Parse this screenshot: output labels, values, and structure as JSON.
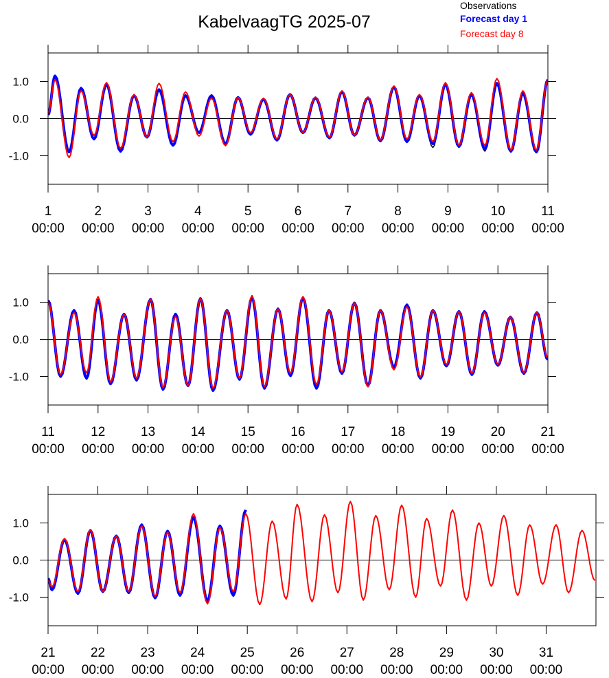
{
  "title": "KabelvaagTG 2025-07",
  "chart_data": [
    {
      "type": "line",
      "xlim": [
        1,
        11
      ],
      "ylim": [
        -1.77,
        1.77
      ],
      "xticks": [
        {
          "value": 1,
          "label": "1\n00:00"
        },
        {
          "value": 2,
          "label": "2\n00:00"
        },
        {
          "value": 3,
          "label": "3\n00:00"
        },
        {
          "value": 4,
          "label": "4\n00:00"
        },
        {
          "value": 5,
          "label": "5\n00:00"
        },
        {
          "value": 6,
          "label": "6\n00:00"
        },
        {
          "value": 7,
          "label": "7\n00:00"
        },
        {
          "value": 8,
          "label": "8\n00:00"
        },
        {
          "value": 9,
          "label": "9\n00:00"
        },
        {
          "value": 10,
          "label": "10\n00:00"
        },
        {
          "value": 11,
          "label": "11\n00:00"
        }
      ],
      "yticks": [
        {
          "value": -1,
          "label": "-1.0"
        },
        {
          "value": 0,
          "label": "0.0"
        },
        {
          "value": 1,
          "label": "1.0"
        }
      ],
      "zero_line": true,
      "x": [
        1.0,
        1.14,
        1.42,
        1.66,
        1.92,
        2.17,
        2.45,
        2.72,
        2.98,
        3.22,
        3.5,
        3.75,
        4.02,
        4.27,
        4.55,
        4.8,
        5.05,
        5.31,
        5.58,
        5.84,
        6.1,
        6.35,
        6.63,
        6.88,
        7.13,
        7.4,
        7.65,
        7.92,
        8.18,
        8.43,
        8.7,
        8.95,
        9.22,
        9.47,
        9.74,
        9.98,
        10.26,
        10.5,
        10.77,
        11.0
      ],
      "series": [
        {
          "name": "Observations",
          "color": "#000000",
          "values": [
            0.1,
            1.12,
            -0.9,
            0.8,
            -0.57,
            0.9,
            -0.9,
            0.6,
            -0.5,
            0.76,
            -0.72,
            0.6,
            -0.4,
            0.6,
            -0.68,
            0.55,
            -0.45,
            0.5,
            -0.58,
            0.63,
            -0.4,
            0.55,
            -0.52,
            0.7,
            -0.47,
            0.55,
            -0.62,
            0.83,
            -0.65,
            0.6,
            -0.78,
            0.9,
            -0.78,
            0.63,
            -0.88,
            0.93,
            -0.9,
            0.66,
            -0.92,
            1.03
          ]
        },
        {
          "name": "Forecast day 1",
          "color": "#0000ff",
          "values": [
            0.1,
            1.15,
            -0.9,
            0.82,
            -0.55,
            0.92,
            -0.88,
            0.62,
            -0.5,
            0.78,
            -0.72,
            0.62,
            -0.38,
            0.62,
            -0.68,
            0.57,
            -0.42,
            0.52,
            -0.58,
            0.65,
            -0.38,
            0.56,
            -0.52,
            0.72,
            -0.45,
            0.56,
            -0.6,
            0.85,
            -0.62,
            0.62,
            -0.68,
            0.92,
            -0.75,
            0.65,
            -0.82,
            0.95,
            -0.88,
            0.68,
            -0.9,
            1.05
          ]
        },
        {
          "name": "Forecast day 8",
          "color": "#ff0000",
          "values": [
            0.15,
            1.05,
            -1.05,
            0.75,
            -0.45,
            0.97,
            -0.8,
            0.65,
            -0.5,
            0.95,
            -0.62,
            0.72,
            -0.47,
            0.55,
            -0.73,
            0.57,
            -0.38,
            0.55,
            -0.55,
            0.65,
            -0.38,
            0.58,
            -0.5,
            0.75,
            -0.45,
            0.58,
            -0.58,
            0.88,
            -0.55,
            0.65,
            -0.62,
            0.97,
            -0.72,
            0.7,
            -0.72,
            1.08,
            -0.85,
            0.75,
            -0.85,
            1.05
          ]
        }
      ]
    },
    {
      "type": "line",
      "xlim": [
        11,
        21
      ],
      "ylim": [
        -1.77,
        1.77
      ],
      "xticks": [
        {
          "value": 11,
          "label": "11\n00:00"
        },
        {
          "value": 12,
          "label": "12\n00:00"
        },
        {
          "value": 13,
          "label": "13\n00:00"
        },
        {
          "value": 14,
          "label": "14\n00:00"
        },
        {
          "value": 15,
          "label": "15\n00:00"
        },
        {
          "value": 16,
          "label": "16\n00:00"
        },
        {
          "value": 17,
          "label": "17\n00:00"
        },
        {
          "value": 18,
          "label": "18\n00:00"
        },
        {
          "value": 19,
          "label": "19\n00:00"
        },
        {
          "value": 20,
          "label": "20\n00:00"
        },
        {
          "value": 21,
          "label": "21\n00:00"
        }
      ],
      "yticks": [
        {
          "value": -1,
          "label": "-1.0"
        },
        {
          "value": 0,
          "label": "0.0"
        },
        {
          "value": 1,
          "label": "1.0"
        }
      ],
      "zero_line": true,
      "x": [
        11.0,
        11.25,
        11.52,
        11.77,
        12.0,
        12.25,
        12.52,
        12.77,
        13.05,
        13.3,
        13.55,
        13.8,
        14.05,
        14.3,
        14.58,
        14.83,
        15.08,
        15.33,
        15.6,
        15.85,
        16.1,
        16.37,
        16.62,
        16.88,
        17.13,
        17.4,
        17.65,
        17.92,
        18.18,
        18.45,
        18.7,
        18.97,
        19.22,
        19.48,
        19.73,
        20.0,
        20.25,
        20.52,
        20.78,
        21.0
      ],
      "series": [
        {
          "color": "#000000",
          "values": [
            1.03,
            -0.98,
            0.76,
            -1.02,
            1.03,
            -1.18,
            0.66,
            -1.08,
            1.06,
            -1.33,
            0.66,
            -1.23,
            1.08,
            -1.36,
            0.76,
            -1.06,
            1.1,
            -1.3,
            0.8,
            -0.96,
            1.1,
            -1.3,
            0.76,
            -0.9,
            0.96,
            -1.23,
            0.76,
            -0.73,
            0.91,
            -1.03,
            0.76,
            -0.7,
            0.73,
            -0.93,
            0.73,
            -0.68,
            0.58,
            -0.9,
            0.7,
            -0.53
          ]
        },
        {
          "color": "#0000ff",
          "values": [
            1.05,
            -1.0,
            0.78,
            -1.05,
            1.05,
            -1.2,
            0.68,
            -1.1,
            1.08,
            -1.35,
            0.68,
            -1.25,
            1.1,
            -1.38,
            0.78,
            -1.08,
            1.12,
            -1.32,
            0.82,
            -0.98,
            1.12,
            -1.32,
            0.78,
            -0.92,
            0.98,
            -1.25,
            0.78,
            -0.75,
            0.93,
            -1.05,
            0.78,
            -0.72,
            0.75,
            -0.95,
            0.75,
            -0.7,
            0.6,
            -0.92,
            0.72,
            -0.55
          ]
        },
        {
          "color": "#ff0000",
          "values": [
            1.0,
            -0.95,
            0.72,
            -0.9,
            1.15,
            -1.15,
            0.68,
            -1.05,
            1.08,
            -1.3,
            0.62,
            -1.25,
            1.1,
            -1.32,
            0.78,
            -1.05,
            1.18,
            -1.28,
            0.82,
            -0.92,
            1.15,
            -1.22,
            0.78,
            -0.88,
            0.98,
            -1.28,
            0.78,
            -0.82,
            0.88,
            -1.02,
            0.78,
            -0.68,
            0.75,
            -0.92,
            0.72,
            -0.68,
            0.6,
            -0.9,
            0.72,
            -0.5
          ]
        }
      ]
    },
    {
      "type": "line",
      "xlim": [
        21,
        32
      ],
      "ylim": [
        -1.77,
        1.77
      ],
      "xticks": [
        {
          "value": 21,
          "label": "21\n00:00"
        },
        {
          "value": 22,
          "label": "22\n00:00"
        },
        {
          "value": 23,
          "label": "23\n00:00"
        },
        {
          "value": 24,
          "label": "24\n00:00"
        },
        {
          "value": 25,
          "label": "25\n00:00"
        },
        {
          "value": 26,
          "label": "26\n00:00"
        },
        {
          "value": 27,
          "label": "27\n00:00"
        },
        {
          "value": 28,
          "label": "28\n00:00"
        },
        {
          "value": 29,
          "label": "29\n00:00"
        },
        {
          "value": 30,
          "label": "30\n00:00"
        },
        {
          "value": 31,
          "label": "31\n00:00"
        }
      ],
      "yticks": [
        {
          "value": -1,
          "label": "-1.0"
        },
        {
          "value": 0,
          "label": "0.0"
        },
        {
          "value": 1,
          "label": "1.0"
        }
      ],
      "zero_line": true,
      "x": [
        21.0,
        21.08,
        21.33,
        21.6,
        21.85,
        22.1,
        22.37,
        22.62,
        22.88,
        23.15,
        23.4,
        23.65,
        23.92,
        24.2,
        24.45,
        24.72,
        24.97,
        25.25,
        25.5,
        25.78,
        26.0,
        26.3,
        26.55,
        26.82,
        27.07,
        27.33,
        27.58,
        27.85,
        28.1,
        28.38,
        28.6,
        28.88,
        29.12,
        29.4,
        29.65,
        29.9,
        30.15,
        30.43,
        30.67,
        30.93,
        31.2,
        31.45,
        31.72,
        31.98
      ],
      "series": [
        {
          "color": "#000000",
          "values": [
            -0.5,
            -0.78,
            0.53,
            -0.88,
            0.78,
            -0.83,
            0.63,
            -0.86,
            0.93,
            -1.0,
            0.76,
            -0.93,
            1.13,
            -1.08,
            0.9,
            -0.93,
            1.32,
            null,
            null,
            null,
            null,
            null,
            null,
            null,
            null,
            null,
            null,
            null,
            null,
            null,
            null,
            null,
            null,
            null,
            null,
            null,
            null,
            null,
            null,
            null,
            null,
            null,
            null,
            null
          ]
        },
        {
          "color": "#0000ff",
          "values": [
            -0.5,
            -0.8,
            0.55,
            -0.9,
            0.8,
            -0.85,
            0.65,
            -0.88,
            0.95,
            -1.02,
            0.78,
            -0.95,
            1.15,
            -1.1,
            0.92,
            -0.95,
            1.35,
            null,
            null,
            null,
            null,
            null,
            null,
            null,
            null,
            null,
            null,
            null,
            null,
            null,
            null,
            null,
            null,
            null,
            null,
            null,
            null,
            null,
            null,
            null,
            null,
            null,
            null,
            null
          ]
        },
        {
          "color": "#ff0000",
          "values": [
            -0.55,
            -0.72,
            0.58,
            -0.85,
            0.82,
            -0.85,
            0.65,
            -0.85,
            0.92,
            -0.98,
            0.75,
            -0.88,
            1.25,
            -1.18,
            0.88,
            -0.85,
            1.25,
            -1.2,
            1.05,
            -1.05,
            1.5,
            -1.12,
            1.22,
            -0.88,
            1.58,
            -1.08,
            1.2,
            -0.8,
            1.48,
            -1.0,
            1.12,
            -0.7,
            1.35,
            -1.08,
            1.0,
            -0.7,
            1.2,
            -0.95,
            0.95,
            -0.65,
            0.95,
            -0.88,
            0.8,
            -0.55
          ]
        }
      ]
    }
  ]
}
